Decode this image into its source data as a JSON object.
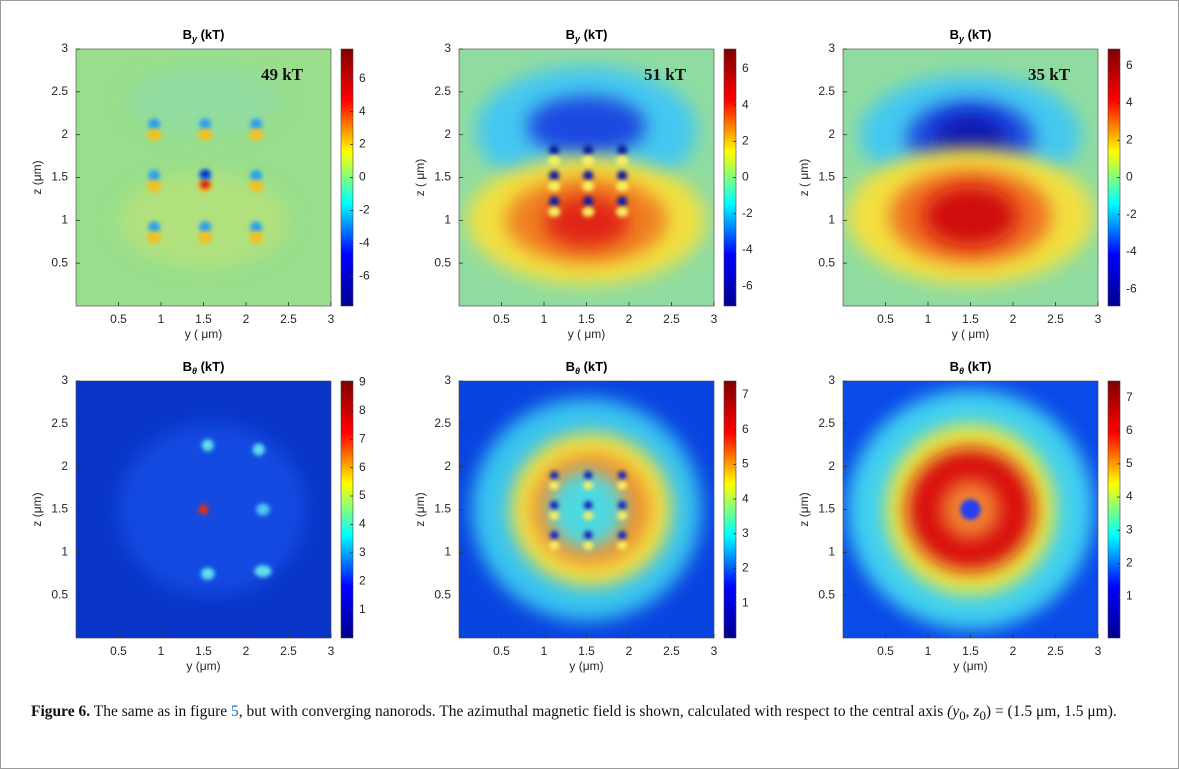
{
  "chart_data": [
    {
      "type": "heatmap",
      "title": "B",
      "title_sub": "y",
      "title_unit": " (kT)",
      "xlabel": "y ( μm)",
      "ylabel": "z (μm)",
      "annotation": "49 kT",
      "xlim": [
        0,
        3
      ],
      "ylim": [
        0,
        3
      ],
      "xticks": [
        0.5,
        1,
        1.5,
        2,
        2.5,
        3
      ],
      "yticks": [
        0.5,
        1,
        1.5,
        2,
        2.5,
        3
      ],
      "clim": [
        -7.8,
        7.8
      ],
      "cticks": [
        6,
        4,
        2,
        0,
        -2,
        -4,
        -6
      ],
      "colormap": [
        "#00008f",
        "#0000ff",
        "#00ffff",
        "#ffff00",
        "#ff0000",
        "#800000"
      ]
    },
    {
      "type": "heatmap",
      "title": "B",
      "title_sub": "y",
      "title_unit": " (kT)",
      "xlabel": "y ( μm)",
      "ylabel": "z ( μm)",
      "annotation": "51 kT",
      "xlim": [
        0,
        3
      ],
      "ylim": [
        0,
        3
      ],
      "xticks": [
        0.5,
        1,
        1.5,
        2,
        2.5,
        3
      ],
      "yticks": [
        0.5,
        1,
        1.5,
        2,
        2.5,
        3
      ],
      "clim": [
        -7.1,
        7.1
      ],
      "cticks": [
        6,
        4,
        2,
        0,
        -2,
        -4,
        -6
      ],
      "colormap": [
        "#00008f",
        "#0000ff",
        "#00ffff",
        "#ffff00",
        "#ff0000",
        "#800000"
      ]
    },
    {
      "type": "heatmap",
      "title": "B",
      "title_sub": "y",
      "title_unit": " (kT)",
      "xlabel": "y ( μm)",
      "ylabel": "z ( μm)",
      "annotation": "35 kT",
      "xlim": [
        0,
        3
      ],
      "ylim": [
        0,
        3
      ],
      "xticks": [
        0.5,
        1,
        1.5,
        2,
        2.5,
        3
      ],
      "yticks": [
        0.5,
        1,
        1.5,
        2,
        2.5,
        3
      ],
      "clim": [
        -6.9,
        6.9
      ],
      "cticks": [
        6,
        4,
        2,
        0,
        -2,
        -4,
        -6
      ],
      "colormap": [
        "#00008f",
        "#0000ff",
        "#00ffff",
        "#ffff00",
        "#ff0000",
        "#800000"
      ]
    },
    {
      "type": "heatmap",
      "title": "B",
      "title_sub": "θ",
      "title_unit": " (kT)",
      "xlabel": "y (μm)",
      "ylabel": "z (μm)",
      "xlim": [
        0,
        3
      ],
      "ylim": [
        0,
        3
      ],
      "xticks": [
        0.5,
        1,
        1.5,
        2,
        2.5,
        3
      ],
      "yticks": [
        0.5,
        1,
        1.5,
        2,
        2.5,
        3
      ],
      "clim": [
        0,
        9.05
      ],
      "cticks": [
        9,
        8,
        7,
        6,
        5,
        4,
        3,
        2,
        1
      ],
      "colormap": [
        "#00008f",
        "#0000ff",
        "#00ffff",
        "#ffff00",
        "#ff0000",
        "#800000"
      ]
    },
    {
      "type": "heatmap",
      "title": "B",
      "title_sub": "θ",
      "title_unit": " (kT)",
      "xlabel": "y (μm)",
      "ylabel": "z (μm)",
      "xlim": [
        0,
        3
      ],
      "ylim": [
        0,
        3
      ],
      "xticks": [
        0.5,
        1,
        1.5,
        2,
        2.5,
        3
      ],
      "yticks": [
        0.5,
        1,
        1.5,
        2,
        2.5,
        3
      ],
      "clim": [
        0,
        7.4
      ],
      "cticks": [
        7,
        6,
        5,
        4,
        3,
        2,
        1
      ],
      "colormap": [
        "#00008f",
        "#0000ff",
        "#00ffff",
        "#ffff00",
        "#ff0000",
        "#800000"
      ]
    },
    {
      "type": "heatmap",
      "title": "B",
      "title_sub": "θ",
      "title_unit": " (kT)",
      "xlabel": "y (μm)",
      "ylabel": "z (μm)",
      "xlim": [
        0,
        3
      ],
      "ylim": [
        0,
        3
      ],
      "xticks": [
        0.5,
        1,
        1.5,
        2,
        2.5,
        3
      ],
      "yticks": [
        0.5,
        1,
        1.5,
        2,
        2.5,
        3
      ],
      "clim": [
        -0.25,
        7.5
      ],
      "cticks": [
        7,
        6,
        5,
        4,
        3,
        2,
        1
      ],
      "colormap": [
        "#00008f",
        "#0000ff",
        "#00ffff",
        "#ffff00",
        "#ff0000",
        "#800000"
      ]
    }
  ],
  "caption": {
    "label": "Figure 6.",
    "text_before": "The same as in figure ",
    "ref": "5",
    "text_after": ", but with converging nanorods. The azimuthal magnetic field is shown, calculated with respect to the central axis ",
    "math": [
      "(y",
      "0",
      ", z",
      "0",
      ") = (1.5 μm, 1.5 μm)."
    ]
  }
}
